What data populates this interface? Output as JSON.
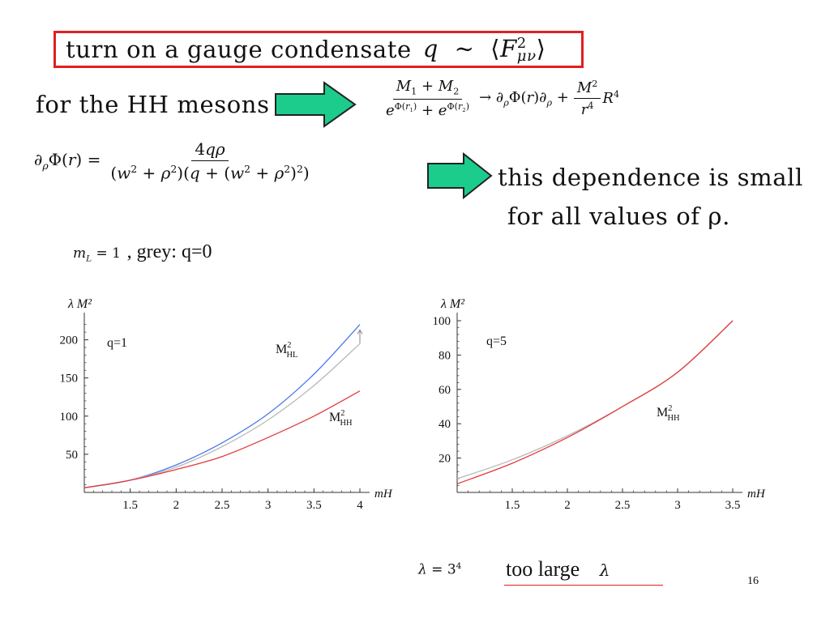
{
  "box": {
    "text": "turn on a gauge condensate",
    "math": "q ∼ ⟨F²μν⟩",
    "border_color": "#e02020"
  },
  "row1": {
    "label": "for the HH mesons",
    "frac_num": "M₁ + M₂",
    "frac_den": "e^{Φ(r₁)} + e^{Φ(r₂)}",
    "rhs": "→ ∂ρΦ(r)∂ρ + (M²/r⁴) R⁴"
  },
  "row2": {
    "lhs": "∂ρΦ(r) =",
    "frac_num": "4qρ",
    "frac_den": "(w² + ρ²)(q + (w² + ρ²)²)",
    "comment_line1": "this dependence is small",
    "comment_line2": "for all values of ρ."
  },
  "note": {
    "math": "mL = 1",
    "text": ", grey: q=0"
  },
  "arrow_color": "#1ccc8c",
  "bottom": {
    "lambda_math": "λ = 3⁴",
    "text": "too large",
    "lambda_symbol": "λ",
    "underline_color": "#e02020"
  },
  "page_number": "16",
  "chart_data": [
    {
      "type": "line",
      "ylabel": "λ M²",
      "xlabel": "mH",
      "annotation": "q=1",
      "xlim": [
        1.0,
        4.0
      ],
      "ylim": [
        0,
        225
      ],
      "xticks": [
        "1.5",
        "2",
        "2.5",
        "3",
        "3.5",
        "4"
      ],
      "yticks": [
        "50",
        "100",
        "150",
        "200"
      ],
      "x": [
        1.0,
        1.5,
        2.0,
        2.5,
        3.0,
        3.5,
        4.0
      ],
      "series": [
        {
          "name": "M²HL",
          "color": "#4a78e6",
          "values": [
            6,
            16,
            36,
            65,
            103,
            155,
            220
          ]
        },
        {
          "name": "",
          "color": "#b8b8b8",
          "values": [
            6,
            16,
            33,
            60,
            95,
            140,
            195
          ]
        },
        {
          "name": "M²HH",
          "color": "#e23a3a",
          "values": [
            6,
            16,
            30,
            47,
            72,
            100,
            133
          ]
        }
      ],
      "labels": {
        "hl": "M²HL",
        "hh": "M²HH"
      }
    },
    {
      "type": "line",
      "ylabel": "λ M²",
      "xlabel": "mH",
      "annotation": "q=5",
      "xlim": [
        1.0,
        3.5
      ],
      "ylim": [
        0,
        100
      ],
      "xticks": [
        "1.5",
        "2",
        "2.5",
        "3",
        "3.5"
      ],
      "yticks": [
        "20",
        "40",
        "60",
        "80",
        "100"
      ],
      "x": [
        1.0,
        1.5,
        2.0,
        2.5,
        3.0,
        3.5
      ],
      "series": [
        {
          "name": "",
          "color": "#b8b8b8",
          "values": [
            8,
            19,
            33,
            50,
            70,
            100
          ]
        },
        {
          "name": "M²HH",
          "color": "#e23a3a",
          "values": [
            5,
            17,
            32,
            50,
            70,
            100
          ]
        }
      ],
      "labels": {
        "hh": "M²HH"
      }
    }
  ]
}
